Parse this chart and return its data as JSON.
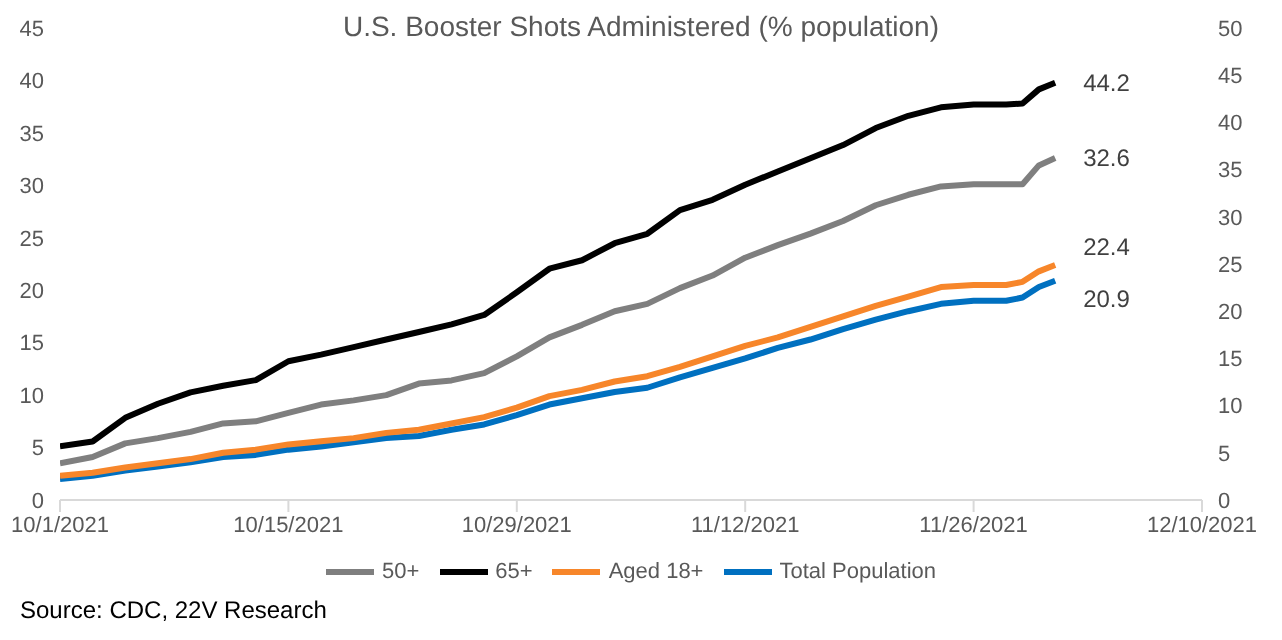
{
  "chart_data": {
    "type": "line",
    "title": "U.S. Booster Shots Administered (% population)",
    "x": [
      "2021-10-01",
      "2021-10-03",
      "2021-10-05",
      "2021-10-07",
      "2021-10-09",
      "2021-10-11",
      "2021-10-13",
      "2021-10-15",
      "2021-10-17",
      "2021-10-19",
      "2021-10-21",
      "2021-10-23",
      "2021-10-25",
      "2021-10-27",
      "2021-10-29",
      "2021-10-31",
      "2021-11-02",
      "2021-11-04",
      "2021-11-06",
      "2021-11-08",
      "2021-11-10",
      "2021-11-12",
      "2021-11-14",
      "2021-11-16",
      "2021-11-18",
      "2021-11-20",
      "2021-11-22",
      "2021-11-24",
      "2021-11-26",
      "2021-11-28",
      "2021-11-29",
      "2021-11-30",
      "2021-12-01"
    ],
    "series": [
      {
        "name": "Total Population",
        "color": "#0070c0",
        "values": [
          2.0,
          2.3,
          2.8,
          3.2,
          3.6,
          4.1,
          4.3,
          4.8,
          5.1,
          5.5,
          5.9,
          6.1,
          6.7,
          7.2,
          8.1,
          9.1,
          9.7,
          10.3,
          10.7,
          11.7,
          12.6,
          13.5,
          14.5,
          15.3,
          16.3,
          17.2,
          18.0,
          18.7,
          19.0,
          19.0,
          19.3,
          20.3,
          20.9
        ],
        "value_labels": [
          null,
          null,
          null,
          null,
          null,
          null,
          null,
          null,
          null,
          null,
          null,
          null,
          null,
          null,
          null,
          null,
          null,
          null,
          null,
          null,
          null,
          null,
          null,
          null,
          null,
          null,
          null,
          null,
          null,
          null,
          null,
          null,
          "20.9"
        ]
      },
      {
        "name": "Aged 18+",
        "color": "#f7862a",
        "values": [
          2.3,
          2.6,
          3.1,
          3.5,
          3.9,
          4.5,
          4.8,
          5.3,
          5.6,
          5.9,
          6.4,
          6.7,
          7.3,
          7.9,
          8.8,
          9.9,
          10.5,
          11.3,
          11.8,
          12.7,
          13.7,
          14.7,
          15.5,
          16.5,
          17.5,
          18.5,
          19.4,
          20.3,
          20.5,
          20.5,
          20.8,
          21.8,
          22.4
        ],
        "value_labels": [
          null,
          null,
          null,
          null,
          null,
          null,
          null,
          null,
          null,
          null,
          null,
          null,
          null,
          null,
          null,
          null,
          null,
          null,
          null,
          null,
          null,
          null,
          null,
          null,
          null,
          null,
          null,
          null,
          null,
          null,
          null,
          null,
          "22.4"
        ]
      },
      {
        "name": "50+",
        "color": "#7f7f7f",
        "values": [
          3.5,
          4.1,
          5.4,
          5.9,
          6.5,
          7.3,
          7.5,
          8.3,
          9.1,
          9.5,
          10.0,
          11.1,
          11.4,
          12.1,
          13.7,
          15.5,
          16.7,
          18.0,
          18.7,
          20.2,
          21.4,
          23.1,
          24.3,
          25.4,
          26.6,
          28.1,
          29.1,
          29.9,
          30.1,
          30.1,
          30.1,
          31.9,
          32.6
        ],
        "value_labels": [
          null,
          null,
          null,
          null,
          null,
          null,
          null,
          null,
          null,
          null,
          null,
          null,
          null,
          null,
          null,
          null,
          null,
          null,
          null,
          null,
          null,
          null,
          null,
          null,
          null,
          null,
          null,
          null,
          null,
          null,
          null,
          null,
          "32.6"
        ]
      },
      {
        "name": "65+",
        "color": "#000000",
        "axis": "y2",
        "values": [
          5.7,
          6.2,
          8.7,
          10.2,
          11.4,
          12.1,
          12.7,
          14.7,
          15.4,
          16.2,
          17.0,
          17.8,
          18.6,
          19.6,
          22.0,
          24.5,
          25.4,
          27.2,
          28.2,
          30.7,
          31.8,
          33.4,
          34.8,
          36.2,
          37.6,
          39.4,
          40.7,
          41.6,
          41.9,
          41.9,
          42.0,
          43.5,
          44.2
        ],
        "value_labels": [
          null,
          null,
          null,
          null,
          null,
          null,
          null,
          null,
          null,
          null,
          null,
          null,
          null,
          null,
          null,
          null,
          null,
          null,
          null,
          null,
          null,
          null,
          null,
          null,
          null,
          null,
          null,
          null,
          null,
          null,
          null,
          null,
          "44.2"
        ]
      }
    ],
    "xlim": [
      "2021-10-01",
      "2021-12-10"
    ],
    "xticks": [
      {
        "value": "2021-10-01",
        "label": "10/1/2021"
      },
      {
        "value": "2021-10-15",
        "label": "10/15/2021"
      },
      {
        "value": "2021-10-29",
        "label": "10/29/2021"
      },
      {
        "value": "2021-11-12",
        "label": "11/12/2021"
      },
      {
        "value": "2021-11-26",
        "label": "11/26/2021"
      },
      {
        "value": "2021-12-10",
        "label": "12/10/2021"
      }
    ],
    "ylim": [
      0,
      45
    ],
    "yticks": [
      0,
      5,
      10,
      15,
      20,
      25,
      30,
      35,
      40,
      45
    ],
    "y2lim": [
      0,
      50
    ],
    "y2ticks": [
      0,
      5,
      10,
      15,
      20,
      25,
      30,
      35,
      40,
      45,
      50
    ],
    "grid": false,
    "legend": "bottom",
    "marker": "none",
    "line_style": "solid",
    "annotations": [
      "Source: CDC, 22V Research"
    ]
  }
}
